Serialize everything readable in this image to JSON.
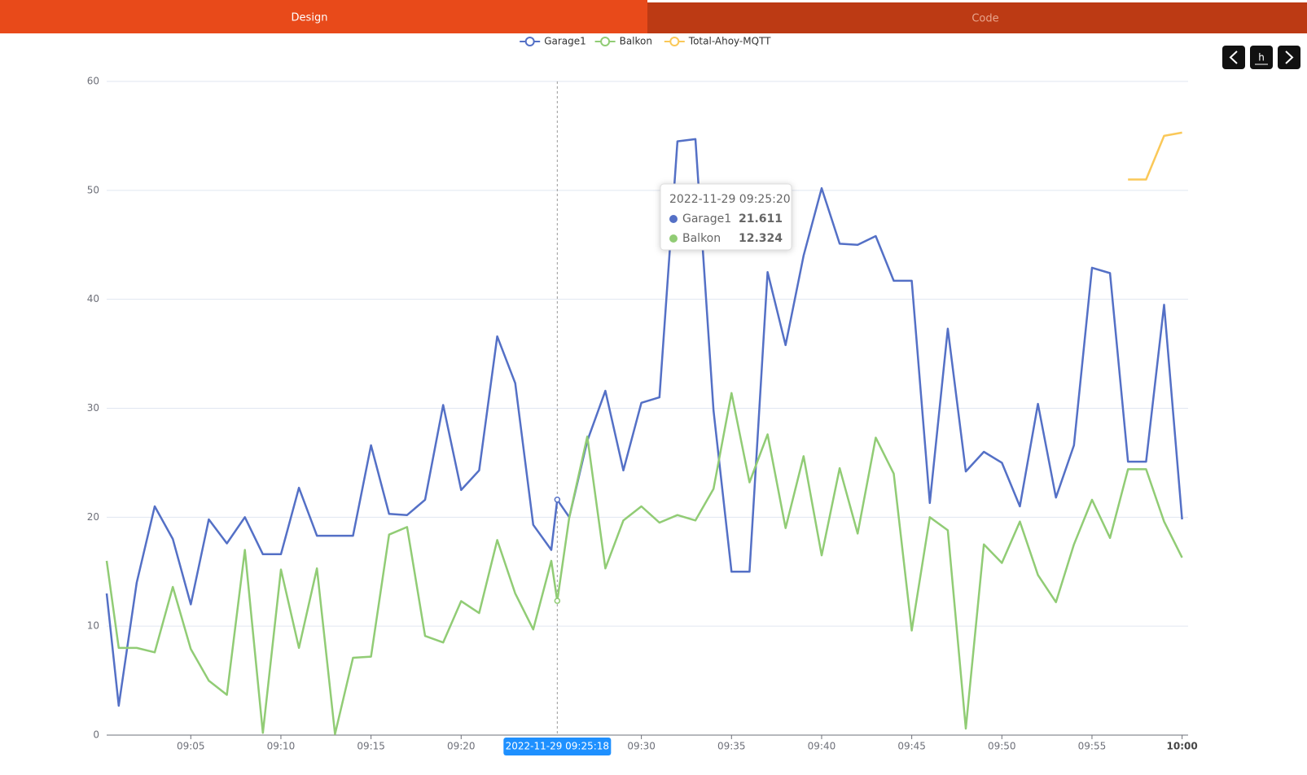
{
  "tabs": [
    "Design",
    "Code"
  ],
  "nav_button_label": "h",
  "chart_data": {
    "type": "line",
    "x": [
      "09:00:20",
      "09:01:00",
      "09:02:00",
      "09:03:00",
      "09:04:00",
      "09:05:00",
      "09:06:00",
      "09:07:00",
      "09:08:00",
      "09:09:00",
      "09:10:00",
      "09:11:00",
      "09:12:00",
      "09:13:00",
      "09:14:00",
      "09:15:00",
      "09:16:00",
      "09:17:00",
      "09:18:00",
      "09:19:00",
      "09:20:00",
      "09:21:00",
      "09:22:00",
      "09:23:00",
      "09:24:00",
      "09:25:00",
      "09:25:20",
      "09:26:00",
      "09:27:00",
      "09:28:00",
      "09:29:00",
      "09:30:00",
      "09:31:00",
      "09:32:00",
      "09:33:00",
      "09:34:00",
      "09:35:00",
      "09:36:00",
      "09:37:00",
      "09:38:00",
      "09:39:00",
      "09:40:00",
      "09:41:00",
      "09:42:00",
      "09:43:00",
      "09:44:00",
      "09:45:00",
      "09:46:00",
      "09:47:00",
      "09:48:00",
      "09:49:00",
      "09:50:00",
      "09:51:00",
      "09:52:00",
      "09:53:00",
      "09:54:00",
      "09:55:00",
      "09:56:00",
      "09:57:00",
      "09:58:00",
      "09:59:00",
      "10:00:00"
    ],
    "series": [
      {
        "name": "Garage1",
        "color": "#5470c6",
        "values": [
          13,
          2.7,
          14,
          21,
          18,
          12,
          19.8,
          17.6,
          20,
          16.6,
          16.6,
          22.7,
          18.3,
          18.3,
          18.3,
          26.6,
          20.3,
          20.2,
          21.6,
          30.3,
          22.5,
          24.3,
          36.6,
          32.3,
          19.3,
          17,
          21.611,
          20,
          27,
          31.6,
          24.3,
          30.5,
          31,
          54.5,
          54.7,
          29.8,
          15,
          15,
          42.5,
          35.8,
          44,
          50.2,
          45.1,
          45,
          45.8,
          41.7,
          41.7,
          21.3,
          37.3,
          24.2,
          26,
          25,
          21,
          30.4,
          21.8,
          26.6,
          42.9,
          42.4,
          25.1,
          25.1,
          39.5,
          19.8
        ]
      },
      {
        "name": "Balkon",
        "color": "#91cc75",
        "values": [
          16,
          8,
          8,
          7.6,
          13.6,
          7.9,
          5,
          3.7,
          17,
          0.2,
          15.2,
          8,
          15.3,
          0.1,
          7.1,
          7.2,
          18.4,
          19.1,
          9.1,
          8.5,
          12.3,
          11.2,
          17.9,
          13,
          9.7,
          16,
          12.324,
          20,
          27.4,
          15.3,
          19.7,
          21,
          19.5,
          20.2,
          19.7,
          22.6,
          31.4,
          23.2,
          27.6,
          19,
          25.6,
          16.5,
          24.5,
          18.5,
          27.3,
          24,
          9.6,
          20,
          18.8,
          0.6,
          17.5,
          15.8,
          19.6,
          14.7,
          12.2,
          17.5,
          21.6,
          18.1,
          24.4,
          24.4,
          19.6,
          16.3
        ]
      },
      {
        "name": "Total-Ahoy-MQTT",
        "color": "#fac858",
        "values": [
          null,
          null,
          null,
          null,
          null,
          null,
          null,
          null,
          null,
          null,
          null,
          null,
          null,
          null,
          null,
          null,
          null,
          null,
          null,
          null,
          null,
          null,
          null,
          null,
          null,
          null,
          null,
          null,
          null,
          null,
          null,
          null,
          null,
          null,
          null,
          null,
          null,
          null,
          null,
          null,
          null,
          null,
          null,
          null,
          null,
          null,
          null,
          null,
          null,
          null,
          null,
          null,
          null,
          null,
          null,
          null,
          null,
          null,
          51,
          51,
          55,
          55.3
        ]
      }
    ],
    "xlim": [
      "09:00:20",
      "10:00:20"
    ],
    "xticks": [
      {
        "value": "09:05:00",
        "label": "09:05"
      },
      {
        "value": "09:10:00",
        "label": "09:10"
      },
      {
        "value": "09:15:00",
        "label": "09:15"
      },
      {
        "value": "09:20:00",
        "label": "09:20"
      },
      {
        "value": "09:30:00",
        "label": "09:30"
      },
      {
        "value": "09:35:00",
        "label": "09:35"
      },
      {
        "value": "09:40:00",
        "label": "09:40"
      },
      {
        "value": "09:45:00",
        "label": "09:45"
      },
      {
        "value": "09:50:00",
        "label": "09:50"
      },
      {
        "value": "09:55:00",
        "label": "09:55"
      },
      {
        "value": "10:00:00",
        "label": "10:00"
      }
    ],
    "ylim": [
      0,
      60
    ],
    "yticks": [
      0,
      10,
      20,
      30,
      40,
      50,
      60
    ],
    "grid": true,
    "legend": "top",
    "axis_pointer_label": "2022-11-29 09:25:18",
    "tooltip": {
      "title": "2022-11-29 09:25:20"
    }
  }
}
